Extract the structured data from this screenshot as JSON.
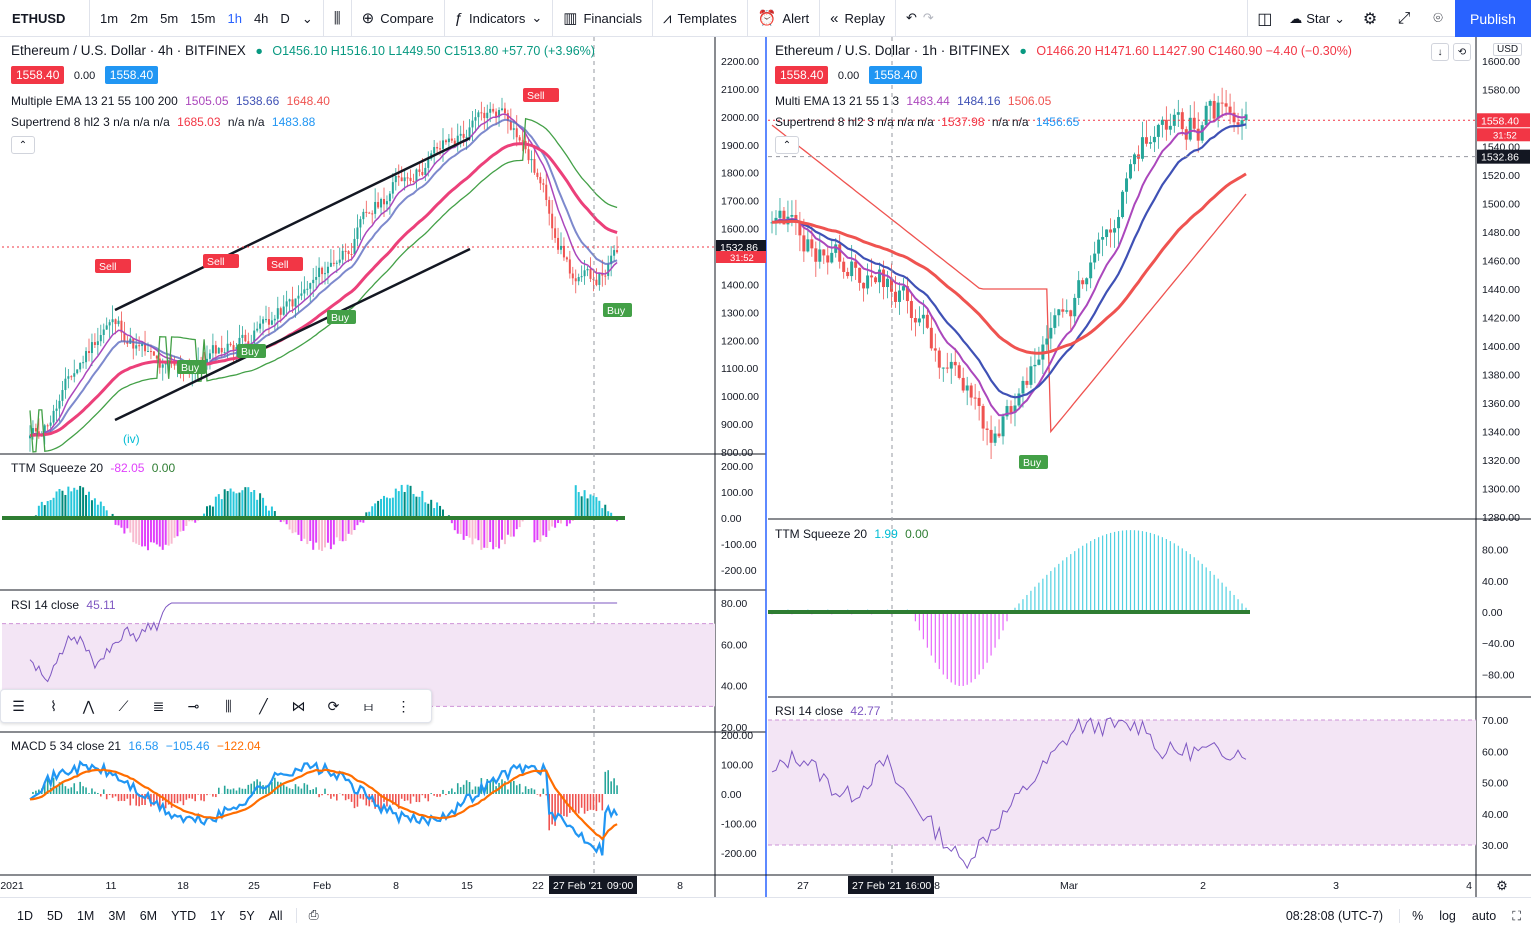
{
  "toolbar": {
    "symbol": "ETHUSD",
    "intervals": [
      "1m",
      "2m",
      "5m",
      "15m",
      "1h",
      "4h",
      "D"
    ],
    "active_interval": "1h",
    "compare": "Compare",
    "indicators": "Indicators",
    "financials": "Financials",
    "templates": "Templates",
    "alert": "Alert",
    "replay": "Replay",
    "star": "Star",
    "publish": "Publish"
  },
  "left": {
    "title": "Ethereum / U.S. Dollar · 4h · BITFINEX",
    "ohlc": {
      "o": "O1456.10",
      "h": "H1516.10",
      "l": "L1449.50",
      "c": "C1513.80",
      "chg": "+57.70 (+3.96%)"
    },
    "bid": "1558.40",
    "spread": "0.00",
    "ask": "1558.40",
    "ema_label": "Multiple EMA 13 21 55 100 200",
    "ema_values": [
      "1505.05",
      "1538.66",
      "1648.40"
    ],
    "st_label": "Supertrend 8 hl2 3  n/a n/a n/a",
    "st_values": [
      "1685.03",
      "n/a n/a",
      "1483.88"
    ],
    "price_ticks": [
      "2200.00",
      "2100.00",
      "2000.00",
      "1900.00",
      "1800.00",
      "1700.00",
      "1600.00",
      "1500.00",
      "1400.00",
      "1300.00",
      "1200.00",
      "1100.00",
      "1000.00",
      "900.00",
      "800.00"
    ],
    "current_price_tag": "1532.86",
    "countdown_tag": "31:52",
    "ttm_label": "TTM Squeeze 20",
    "ttm_values": [
      "-82.05",
      "0.00"
    ],
    "ttm_ticks": [
      "200.00",
      "100.00",
      "0.00",
      "-100.00",
      "-200.00"
    ],
    "rsi_label": "RSI 14 close",
    "rsi_value": "45.11",
    "rsi_ticks": [
      "80.00",
      "60.00",
      "40.00",
      "20.00"
    ],
    "macd_label": "MACD 5 34 close 21",
    "macd_values": [
      "16.58",
      "−105.46",
      "−122.04"
    ],
    "macd_ticks": [
      "200.00",
      "100.00",
      "0.00",
      "-100.00",
      "-200.00"
    ],
    "time_ticks": [
      "2021",
      "11",
      "18",
      "25",
      "Feb",
      "8",
      "15",
      "22",
      "8"
    ],
    "crosshair_time": "27 Feb '21",
    "crosshair_time2": "09:00",
    "annotations": {
      "sell": "Sell",
      "buy": "Buy",
      "wave_iv": "(iv)"
    }
  },
  "right": {
    "title": "Ethereum / U.S. Dollar · 1h · BITFINEX",
    "ohlc": {
      "o": "O1466.20",
      "h": "H1471.60",
      "l": "L1427.90",
      "c": "C1460.90",
      "chg": "−4.40 (−0.30%)"
    },
    "bid": "1558.40",
    "spread": "0.00",
    "ask": "1558.40",
    "ema_label": "Multi EMA 13 21 55 1 3",
    "ema_values": [
      "1483.44",
      "1484.16",
      "1506.05"
    ],
    "st_label": "Supertrend 8 hl2 3  n/a n/a n/a",
    "st_values": [
      "1537.98",
      "n/a n/a",
      "1456.65"
    ],
    "currency": "USD",
    "price_ticks": [
      "1600.00",
      "1580.00",
      "1560.00",
      "1540.00",
      "1520.00",
      "1500.00",
      "1480.00",
      "1460.00",
      "1440.00",
      "1420.00",
      "1400.00",
      "1380.00",
      "1360.00",
      "1340.00",
      "1320.00",
      "1300.00",
      "1280.00"
    ],
    "last_price_tag": "1558.40",
    "countdown_tag": "31:52",
    "crosshair_price_tag": "1532.86",
    "ttm_label": "TTM Squeeze 20",
    "ttm_values": [
      "1.99",
      "0.00"
    ],
    "ttm_ticks": [
      "80.00",
      "40.00",
      "0.00",
      "−40.00",
      "−80.00"
    ],
    "rsi_label": "RSI 14 close",
    "rsi_value": "42.77",
    "rsi_ticks": [
      "70.00",
      "60.00",
      "50.00",
      "40.00",
      "30.00"
    ],
    "time_ticks": [
      "27",
      "8",
      "Mar",
      "2",
      "3",
      "4"
    ],
    "crosshair_time": "27 Feb '21",
    "crosshair_time2": "16:00",
    "annotations": {
      "buy": "Buy"
    }
  },
  "bottom": {
    "ranges": [
      "1D",
      "5D",
      "1M",
      "3M",
      "6M",
      "YTD",
      "1Y",
      "5Y",
      "All"
    ],
    "clock": "08:28:08 (UTC-7)",
    "pct": "%",
    "log": "log",
    "auto": "auto"
  },
  "colors": {
    "up": "#26a69a",
    "down": "#ef5350",
    "accent": "#2962ff",
    "ema1": "#ab47bc",
    "ema2": "#3f51b5",
    "ema3": "#ef5350",
    "rsi": "#7e57c2",
    "rsi_band": "#f3e5f5"
  }
}
